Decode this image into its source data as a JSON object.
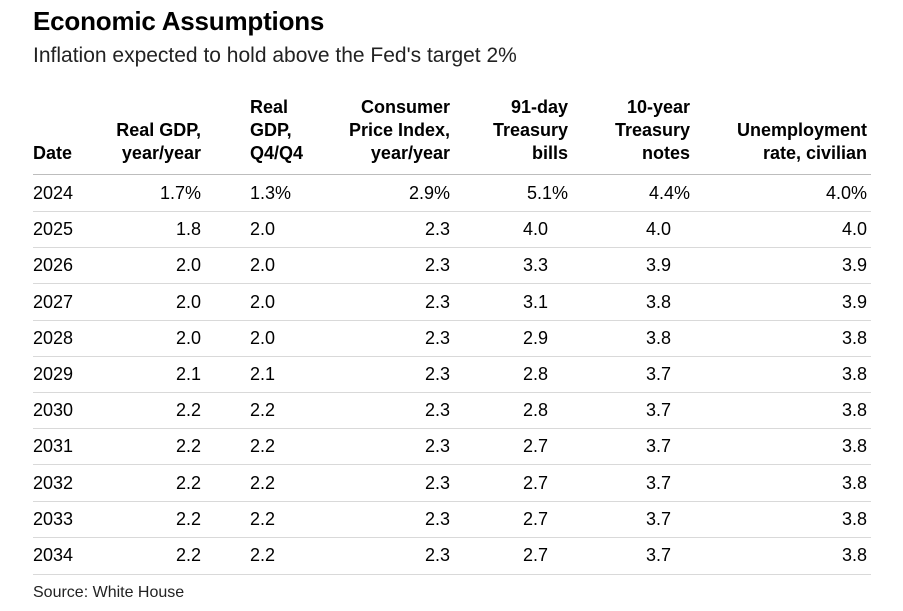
{
  "chart_data": {
    "type": "table",
    "title": "Economic Assumptions",
    "subtitle": "Inflation expected to hold above the Fed's target 2%",
    "source": "Source: White House",
    "columns": [
      "Date",
      "Real GDP,\nyear/year",
      "Real\nGDP,\nQ4/Q4",
      "Consumer\nPrice Index,\nyear/year",
      "91-day\nTreasury\nbills",
      "10-year\nTreasury\nnotes",
      "Unemployment\nrate, civilian"
    ],
    "rows": [
      [
        "2024",
        "1.7%",
        "1.3%",
        "2.9%",
        "5.1%",
        "4.4%",
        "4.0%"
      ],
      [
        "2025",
        "1.8",
        "2.0",
        "2.3",
        "4.0",
        "4.0",
        "4.0"
      ],
      [
        "2026",
        "2.0",
        "2.0",
        "2.3",
        "3.3",
        "3.9",
        "3.9"
      ],
      [
        "2027",
        "2.0",
        "2.0",
        "2.3",
        "3.1",
        "3.8",
        "3.9"
      ],
      [
        "2028",
        "2.0",
        "2.0",
        "2.3",
        "2.9",
        "3.8",
        "3.8"
      ],
      [
        "2029",
        "2.1",
        "2.1",
        "2.3",
        "2.8",
        "3.7",
        "3.8"
      ],
      [
        "2030",
        "2.2",
        "2.2",
        "2.3",
        "2.8",
        "3.7",
        "3.8"
      ],
      [
        "2031",
        "2.2",
        "2.2",
        "2.3",
        "2.7",
        "3.7",
        "3.8"
      ],
      [
        "2032",
        "2.2",
        "2.2",
        "2.3",
        "2.7",
        "3.7",
        "3.8"
      ],
      [
        "2033",
        "2.2",
        "2.2",
        "2.3",
        "2.7",
        "3.7",
        "3.8"
      ],
      [
        "2034",
        "2.2",
        "2.2",
        "2.3",
        "2.7",
        "3.7",
        "3.8"
      ]
    ]
  }
}
